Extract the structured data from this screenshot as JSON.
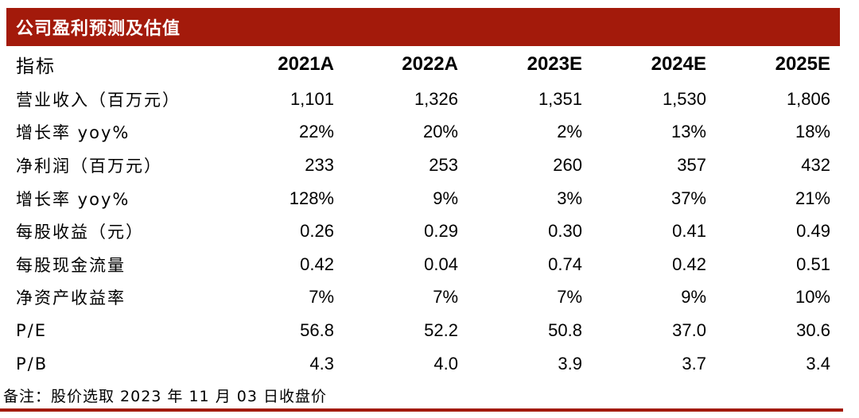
{
  "title": "公司盈利预测及估值",
  "header": {
    "label": "指标",
    "years": [
      "2021A",
      "2022A",
      "2023E",
      "2024E",
      "2025E"
    ]
  },
  "rows": [
    {
      "label": "营业收入（百万元）",
      "values": [
        "1,101",
        "1,326",
        "1,351",
        "1,530",
        "1,806"
      ]
    },
    {
      "label": "增长率 yoy%",
      "values": [
        "22%",
        "20%",
        "2%",
        "13%",
        "18%"
      ]
    },
    {
      "label": "净利润（百万元）",
      "values": [
        "233",
        "253",
        "260",
        "357",
        "432"
      ]
    },
    {
      "label": "增长率 yoy%",
      "values": [
        "128%",
        "9%",
        "3%",
        "37%",
        "21%"
      ]
    },
    {
      "label": "每股收益（元）",
      "values": [
        "0.26",
        "0.29",
        "0.30",
        "0.41",
        "0.49"
      ]
    },
    {
      "label": "每股现金流量",
      "values": [
        "0.42",
        "0.04",
        "0.74",
        "0.42",
        "0.51"
      ]
    },
    {
      "label": "净资产收益率",
      "values": [
        "7%",
        "7%",
        "7%",
        "9%",
        "10%"
      ]
    },
    {
      "label": "P/E",
      "values": [
        "56.8",
        "52.2",
        "50.8",
        "37.0",
        "30.6"
      ]
    },
    {
      "label": "P/B",
      "values": [
        "4.3",
        "4.0",
        "3.9",
        "3.7",
        "3.4"
      ]
    }
  ],
  "note": "备注：股价选取 2023 年 11 月 03 日收盘价",
  "colors": {
    "accent": "#a31a0b",
    "title_text": "#ffffff"
  }
}
